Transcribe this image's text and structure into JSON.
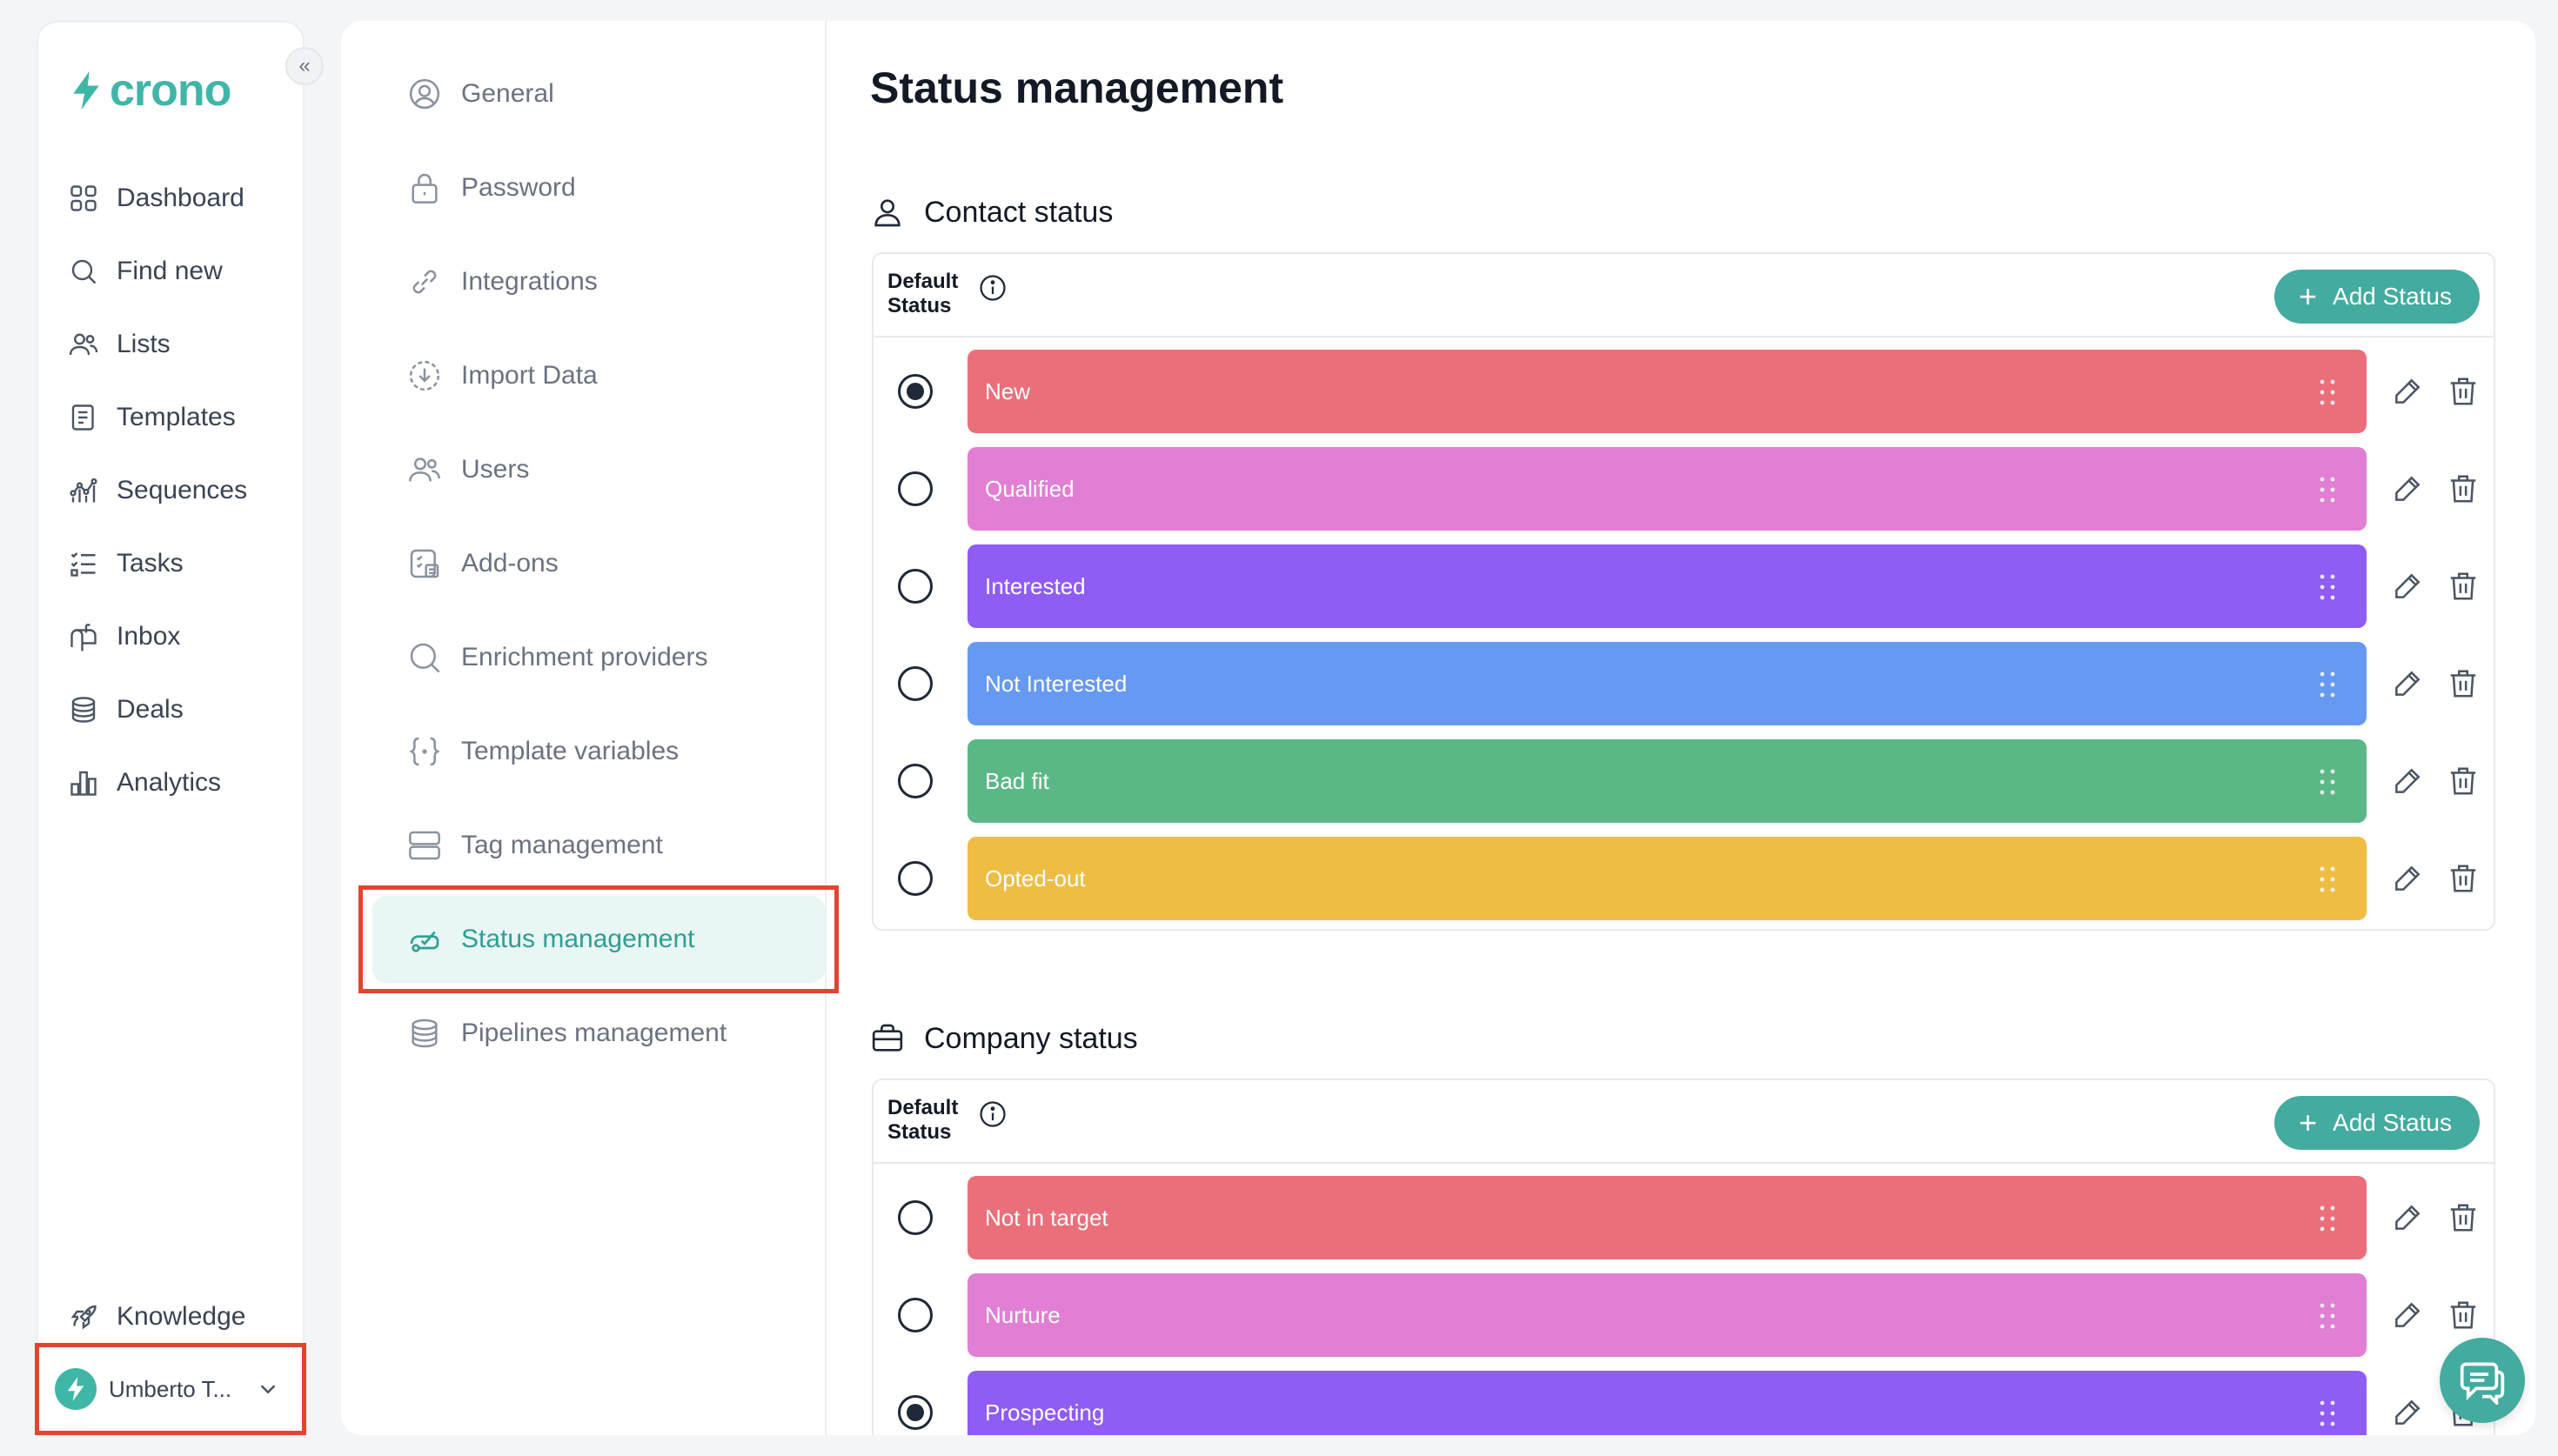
{
  "brand": {
    "name": "crono",
    "accent": "#3fb6a8"
  },
  "sidebar": {
    "collapse_glyph": "«",
    "items": [
      {
        "label": "Dashboard",
        "icon": "grid-icon"
      },
      {
        "label": "Find new",
        "icon": "search-icon"
      },
      {
        "label": "Lists",
        "icon": "users-icon"
      },
      {
        "label": "Templates",
        "icon": "template-icon"
      },
      {
        "label": "Sequences",
        "icon": "sequence-icon"
      },
      {
        "label": "Tasks",
        "icon": "tasks-icon"
      },
      {
        "label": "Inbox",
        "icon": "inbox-icon"
      },
      {
        "label": "Deals",
        "icon": "deals-icon"
      },
      {
        "label": "Analytics",
        "icon": "analytics-icon"
      }
    ],
    "knowledge": "Knowledge",
    "user": "Umberto T..."
  },
  "settings_nav": {
    "items": [
      {
        "label": "General"
      },
      {
        "label": "Password"
      },
      {
        "label": "Integrations"
      },
      {
        "label": "Import Data"
      },
      {
        "label": "Users"
      },
      {
        "label": "Add-ons"
      },
      {
        "label": "Enrichment providers"
      },
      {
        "label": "Template variables"
      },
      {
        "label": "Tag management"
      },
      {
        "label": "Status management"
      },
      {
        "label": "Pipelines management"
      }
    ]
  },
  "page": {
    "title": "Status management"
  },
  "contact_section": {
    "title": "Contact status",
    "default_label": "Default Status",
    "add_label": "Add Status",
    "statuses": [
      {
        "label": "New",
        "color": "#ea6f7a",
        "default": true
      },
      {
        "label": "Qualified",
        "color": "#e07fd3",
        "default": false
      },
      {
        "label": "Interested",
        "color": "#8f5cf5",
        "default": false
      },
      {
        "label": "Not Interested",
        "color": "#6699f2",
        "default": false
      },
      {
        "label": "Bad fit",
        "color": "#5bb886",
        "default": false
      },
      {
        "label": "Opted-out",
        "color": "#f0bd44",
        "default": false
      }
    ]
  },
  "company_section": {
    "title": "Company status",
    "default_label": "Default Status",
    "add_label": "Add Status",
    "statuses": [
      {
        "label": "Not in target",
        "color": "#ea6f7a",
        "default": false
      },
      {
        "label": "Nurture",
        "color": "#e07fd3",
        "default": false
      },
      {
        "label": "Prospecting",
        "color": "#8f5cf5",
        "default": true
      }
    ]
  }
}
